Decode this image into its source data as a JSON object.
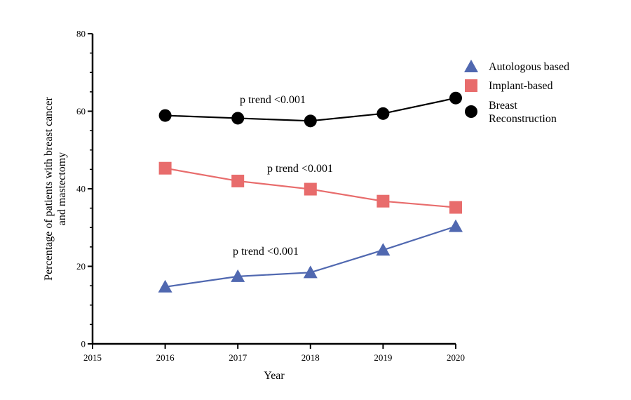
{
  "chart_data": {
    "type": "line",
    "xlabel": "Year",
    "ylabel": [
      "Percentage of patients with breast cancer",
      "and mastectomy"
    ],
    "xlim": [
      2015,
      2020
    ],
    "ylim": [
      0,
      80
    ],
    "x_ticks": [
      "2015",
      "2016",
      "2017",
      "2018",
      "2019",
      "2020"
    ],
    "y_ticks": [
      "0",
      "20",
      "40",
      "60",
      "80"
    ],
    "x": [
      2016,
      2017,
      2018,
      2019,
      2020
    ],
    "grid": false,
    "legend_position": "top-right",
    "series": [
      {
        "name": "Autologous based",
        "marker": "triangle",
        "color": "#5068b0",
        "values": [
          14.7,
          17.4,
          18.4,
          24.2,
          30.3
        ]
      },
      {
        "name": "Implant-based",
        "marker": "square",
        "color": "#e86c6c",
        "values": [
          45.3,
          42.0,
          39.9,
          36.8,
          35.2
        ]
      },
      {
        "name": "Breast Reconstruction",
        "name_lines": [
          "Breast",
          "Reconstruction"
        ],
        "marker": "circle",
        "color": "#000000",
        "values": [
          58.9,
          58.2,
          57.5,
          59.4,
          63.4
        ]
      }
    ],
    "annotations": [
      {
        "text": "p trend <0.001",
        "series": "Breast Reconstruction"
      },
      {
        "text": "p trend <0.001",
        "series": "Implant-based"
      },
      {
        "text": "p trend <0.001",
        "series": "Autologous based"
      }
    ]
  }
}
